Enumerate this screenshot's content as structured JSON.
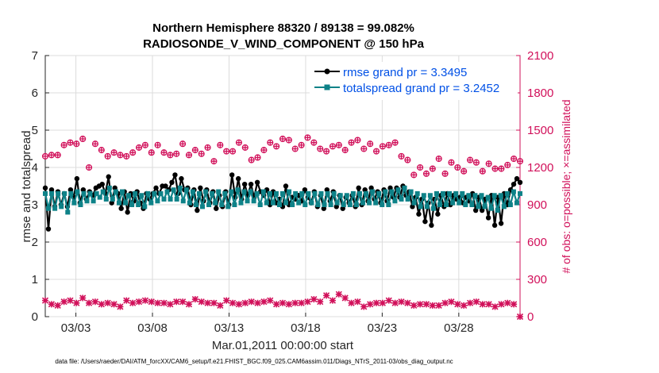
{
  "chart_data": {
    "type": "line",
    "title": "Northern Hemisphere 88320 / 89138 = 99.082%",
    "subtitle": "RADIOSONDE_V_WIND_COMPONENT @ 150 hPa",
    "xlabel": "Mar.01,2011 00:00:00 start",
    "ylabel": "rmse and totalspread",
    "ylabel_right": "# of obs: o=possible; ×=assimilated",
    "x_ticks": [
      "03/03",
      "03/08",
      "03/13",
      "03/18",
      "03/23",
      "03/28"
    ],
    "x_tick_days": [
      3,
      8,
      13,
      18,
      23,
      28
    ],
    "xlim": [
      1.0,
      32.0
    ],
    "ylim": [
      0,
      7
    ],
    "y_ticks": [
      "0",
      "1",
      "2",
      "3",
      "4",
      "5",
      "6",
      "7"
    ],
    "ylim_right": [
      0,
      2100
    ],
    "y_ticks_right": [
      "0",
      "300",
      "600",
      "900",
      "1200",
      "1500",
      "1800",
      "2100"
    ],
    "legend_position": "top-right",
    "footnote": "data file: /Users/raeder/DAI/ATM_forcXX/CAM6_setup/f.e21.FHIST_BGC.f09_025.CAM6assim.011/Diags_NTrS_2011-03/obs_diag_output.nc",
    "series": [
      {
        "name": "rmse grand pr = 3.3495",
        "color": "#000000",
        "marker": "dot",
        "values": [
          3.45,
          2.35,
          3.4,
          2.95,
          3.35,
          3.0,
          3.3,
          2.95,
          3.4,
          3.2,
          3.7,
          3.05,
          3.4,
          3.15,
          3.35,
          3.25,
          3.45,
          3.5,
          3.55,
          3.3,
          3.75,
          3.05,
          3.45,
          3.3,
          2.9,
          3.35,
          2.8,
          3.3,
          3.1,
          3.35,
          3.05,
          2.9,
          3.3,
          3.15,
          3.3,
          3.45,
          3.3,
          3.5,
          3.5,
          3.4,
          3.6,
          3.8,
          3.3,
          3.7,
          3.4,
          3.45,
          3.0,
          3.4,
          2.85,
          3.45,
          3.1,
          3.4,
          3.05,
          3.35,
          2.9,
          3.25,
          2.95,
          3.35,
          3.0,
          3.8,
          3.2,
          3.7,
          3.15,
          3.55,
          3.25,
          3.55,
          3.2,
          3.6,
          3.35,
          3.25,
          3.4,
          3.0,
          3.35,
          3.05,
          3.15,
          2.95,
          3.5,
          3.0,
          3.2,
          3.15,
          3.25,
          3.1,
          3.4,
          3.2,
          3.05,
          3.35,
          2.95,
          3.25,
          2.9,
          3.4,
          3.1,
          3.35,
          2.95,
          3.25,
          2.9,
          3.2,
          3.05,
          3.25,
          2.95,
          3.45,
          3.0,
          3.4,
          3.1,
          3.45,
          3.15,
          3.35,
          3.05,
          3.4,
          3.1,
          3.45,
          3.2,
          3.45,
          3.2,
          3.5,
          3.25,
          3.35,
          2.95,
          3.2,
          2.75,
          3.15,
          2.55,
          3.05,
          2.45,
          3.15,
          2.75,
          3.25,
          2.95,
          3.3,
          3.0,
          3.25,
          3.15,
          3.2,
          3.05,
          3.2,
          3.1,
          3.3,
          2.85,
          3.2,
          2.85,
          3.15,
          2.65,
          3.25,
          2.45,
          3.2,
          2.5,
          3.3,
          3.0,
          3.4,
          3.55,
          3.7,
          3.6
        ]
      },
      {
        "name": "totalspread grand pr = 3.2452",
        "color": "#0e8288",
        "marker": "square",
        "values": [
          3.3,
          2.9,
          3.3,
          2.9,
          3.3,
          2.95,
          3.3,
          2.8,
          3.3,
          3.05,
          3.35,
          3.0,
          3.3,
          3.1,
          3.3,
          3.1,
          3.3,
          3.2,
          3.35,
          3.15,
          3.45,
          3.15,
          3.35,
          3.05,
          3.35,
          3.05,
          3.25,
          3.0,
          3.3,
          3.0,
          3.25,
          2.95,
          3.3,
          3.05,
          3.3,
          3.1,
          3.3,
          3.15,
          3.35,
          3.15,
          3.4,
          3.15,
          3.45,
          3.1,
          3.4,
          3.05,
          3.35,
          3.0,
          3.3,
          2.95,
          3.35,
          3.0,
          3.3,
          3.05,
          3.35,
          3.0,
          3.3,
          2.95,
          3.35,
          3.0,
          3.4,
          3.05,
          3.35,
          3.1,
          3.35,
          3.1,
          3.3,
          3.0,
          3.35,
          3.05,
          3.3,
          3.05,
          3.3,
          3.0,
          3.3,
          3.05,
          3.35,
          3.0,
          3.3,
          3.05,
          3.3,
          3.0,
          3.3,
          3.05,
          3.3,
          3.0,
          3.3,
          3.0,
          3.3,
          3.0,
          3.3,
          3.05,
          3.25,
          3.0,
          3.25,
          3.0,
          3.3,
          3.0,
          3.3,
          3.05,
          3.3,
          3.05,
          3.35,
          3.05,
          3.3,
          3.0,
          3.35,
          3.0,
          3.35,
          3.1,
          3.4,
          3.15,
          3.45,
          3.15,
          3.35,
          3.05,
          3.3,
          2.95,
          3.25,
          2.95,
          3.25,
          2.9,
          3.3,
          3.0,
          3.3,
          3.0,
          3.3,
          3.05,
          3.3,
          3.05,
          3.3,
          3.0,
          3.25,
          3.0,
          3.25,
          2.95,
          3.25,
          2.95,
          3.2,
          2.9,
          3.25,
          2.85,
          3.25,
          2.95,
          3.3,
          3.0,
          3.35,
          3.05,
          3.3
        ]
      },
      {
        "name": "possible",
        "axis": "right",
        "color": "#d1105a",
        "marker": "o",
        "values": [
          1290,
          1300,
          1300,
          1380,
          1400,
          1390,
          1430,
          1200,
          1390,
          1340,
          1290,
          1320,
          1300,
          1290,
          1320,
          1360,
          1380,
          1320,
          1380,
          1320,
          1300,
          1310,
          1390,
          1300,
          1340,
          1310,
          1360,
          1250,
          1380,
          1330,
          1330,
          1400,
          1360,
          1260,
          1280,
          1340,
          1400,
          1370,
          1430,
          1420,
          1350,
          1380,
          1440,
          1400,
          1350,
          1330,
          1370,
          1380,
          1340,
          1400,
          1420,
          1350,
          1390,
          1330,
          1370,
          1380,
          1400,
          1290,
          1260,
          1140,
          1200,
          1150,
          1190,
          1270,
          1150,
          1240,
          1200,
          1170,
          1260,
          1240,
          1170,
          1230,
          1190,
          1190,
          1220,
          1270,
          1250
        ]
      },
      {
        "name": "assimilated",
        "axis": "right",
        "color": "#d1105a",
        "marker": "x",
        "values": [
          130,
          100,
          90,
          120,
          130,
          110,
          150,
          110,
          120,
          100,
          110,
          100,
          80,
          130,
          110,
          120,
          130,
          120,
          110,
          110,
          100,
          120,
          120,
          100,
          140,
          120,
          110,
          110,
          90,
          130,
          110,
          100,
          110,
          120,
          110,
          120,
          130,
          100,
          110,
          100,
          110,
          110,
          120,
          140,
          120,
          170,
          130,
          180,
          150,
          110,
          120,
          80,
          100,
          110,
          110,
          130,
          110,
          120,
          110,
          90,
          100,
          100,
          90,
          90,
          110,
          120,
          100,
          90,
          110,
          120,
          100,
          100,
          80,
          100,
          110,
          100,
          0
        ]
      }
    ]
  }
}
